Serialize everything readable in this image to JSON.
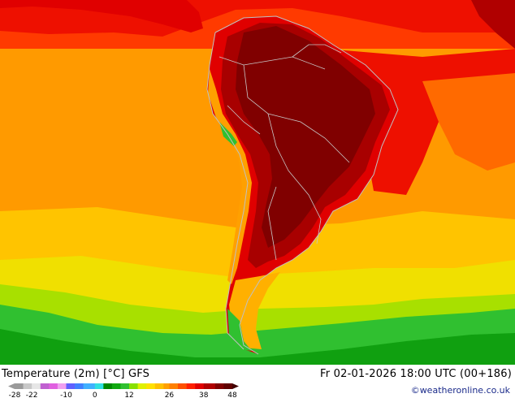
{
  "map": {
    "title": "Temperature (2m) [°C] GFS",
    "valid_time": "Fr 02-01-2026 18:00 UTC (00+186)",
    "credit": "©weatheronline.co.uk",
    "region": "South America",
    "units": "°C"
  },
  "legend": {
    "tick_labels": [
      "-28",
      "-22",
      "-10",
      "0",
      "12",
      "26",
      "38",
      "48"
    ],
    "tick_values": [
      -28,
      -22,
      -10,
      0,
      12,
      26,
      38,
      48
    ],
    "min": -28,
    "max": 48,
    "color_stops": [
      {
        "value": -28,
        "color": "#9a9a9a"
      },
      {
        "value": -25,
        "color": "#c8c8c8"
      },
      {
        "value": -22,
        "color": "#e6e6e6"
      },
      {
        "value": -19,
        "color": "#c060d0"
      },
      {
        "value": -16,
        "color": "#e060e0"
      },
      {
        "value": -13,
        "color": "#f0a0f0"
      },
      {
        "value": -10,
        "color": "#6060ff"
      },
      {
        "value": -7,
        "color": "#4080ff"
      },
      {
        "value": -4,
        "color": "#40b0ff"
      },
      {
        "value": 0,
        "color": "#30e0e0"
      },
      {
        "value": 3,
        "color": "#008800"
      },
      {
        "value": 6,
        "color": "#10a810"
      },
      {
        "value": 9,
        "color": "#30c030"
      },
      {
        "value": 12,
        "color": "#88e000"
      },
      {
        "value": 15,
        "color": "#e0f000"
      },
      {
        "value": 18,
        "color": "#ffe000"
      },
      {
        "value": 21,
        "color": "#ffc000"
      },
      {
        "value": 24,
        "color": "#ffa000"
      },
      {
        "value": 26,
        "color": "#ff8000"
      },
      {
        "value": 29,
        "color": "#ff5000"
      },
      {
        "value": 32,
        "color": "#ff2000"
      },
      {
        "value": 35,
        "color": "#e00000"
      },
      {
        "value": 38,
        "color": "#b00000"
      },
      {
        "value": 42,
        "color": "#800000"
      },
      {
        "value": 45,
        "color": "#600000"
      },
      {
        "value": 48,
        "color": "#400000"
      }
    ]
  }
}
